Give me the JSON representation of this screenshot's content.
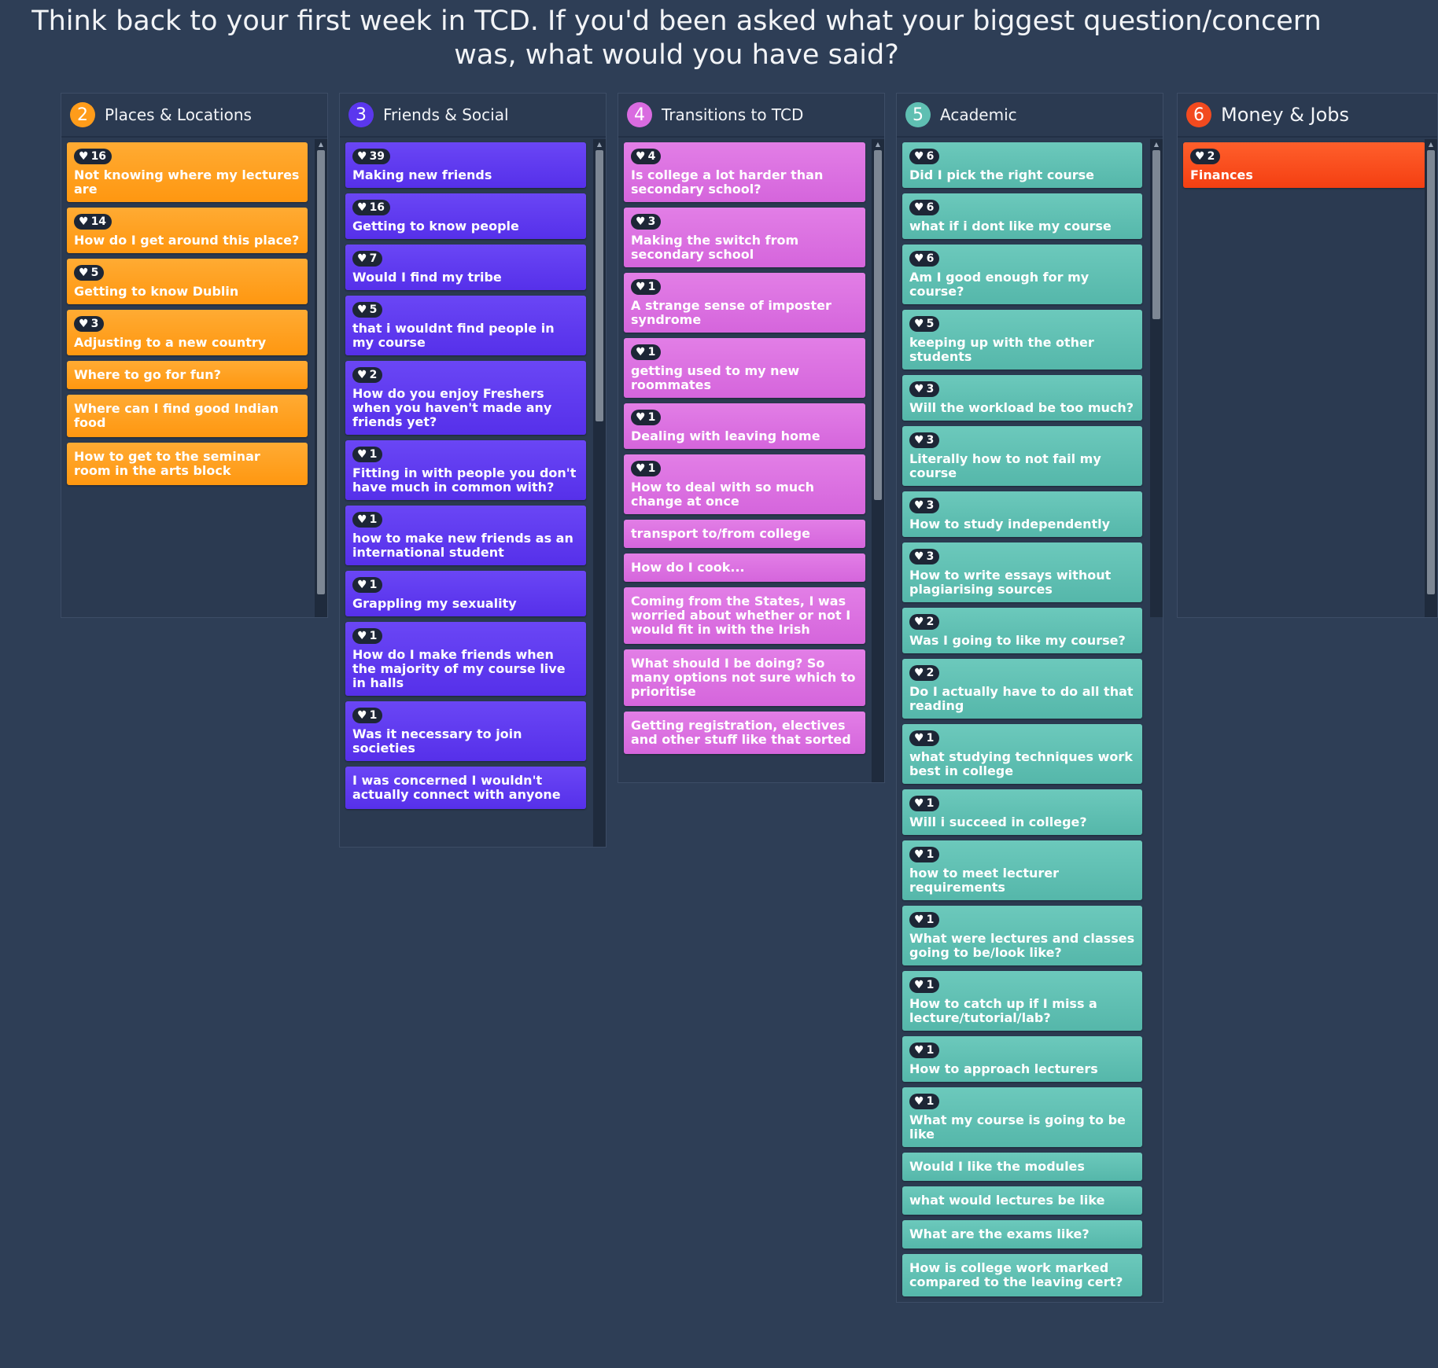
{
  "prompt_title": "Think back to your first week in TCD.  If you'd been asked what your biggest question/concern was, what would you have said?",
  "colors": {
    "background": "#2e3e56",
    "orange": "#ff9f1f",
    "purple": "#5f3bf0",
    "pink": "#dc70e1",
    "teal": "#60c0b3",
    "red": "#f84b1c"
  },
  "columns": [
    {
      "number": "2",
      "title": "Places & Locations",
      "color": "orange",
      "cards": [
        {
          "likes": "16",
          "text": "Not knowing where my lectures are"
        },
        {
          "likes": "14",
          "text": "How do I get around this place?"
        },
        {
          "likes": "5",
          "text": "Getting to know Dublin"
        },
        {
          "likes": "3",
          "text": "Adjusting to a new country"
        },
        {
          "likes": "",
          "text": "Where to go for fun?"
        },
        {
          "likes": "",
          "text": "Where can I find good Indian food"
        },
        {
          "likes": "",
          "text": "How to get to the seminar room in the arts block"
        }
      ]
    },
    {
      "number": "3",
      "title": "Friends & Social",
      "color": "purple",
      "cards": [
        {
          "likes": "39",
          "text": "Making new friends"
        },
        {
          "likes": "16",
          "text": "Getting to know people"
        },
        {
          "likes": "7",
          "text": "Would I find my tribe"
        },
        {
          "likes": "5",
          "text": "that i wouldnt find people in my course"
        },
        {
          "likes": "2",
          "text": "How do you enjoy Freshers when you haven't made any friends yet?"
        },
        {
          "likes": "1",
          "text": "Fitting in with people you don't have much in common with?"
        },
        {
          "likes": "1",
          "text": "how to make new friends as an international student"
        },
        {
          "likes": "1",
          "text": "Grappling my sexuality"
        },
        {
          "likes": "1",
          "text": "How do I make friends when the majority of my course live in halls"
        },
        {
          "likes": "1",
          "text": "Was it necessary to join societies"
        },
        {
          "likes": "",
          "text": "I was concerned I wouldn't actually connect with anyone"
        }
      ]
    },
    {
      "number": "4",
      "title": "Transitions to TCD",
      "color": "pink",
      "cards": [
        {
          "likes": "4",
          "text": "Is college a lot harder than secondary school?"
        },
        {
          "likes": "3",
          "text": "Making the switch from secondary school"
        },
        {
          "likes": "1",
          "text": "A strange sense of imposter syndrome"
        },
        {
          "likes": "1",
          "text": "getting used to my new roommates"
        },
        {
          "likes": "1",
          "text": "Dealing with leaving home"
        },
        {
          "likes": "1",
          "text": "How to deal with so much change at once"
        },
        {
          "likes": "",
          "text": "transport to/from college"
        },
        {
          "likes": "",
          "text": "How do I cook..."
        },
        {
          "likes": "",
          "text": "Coming from the States, I was worried about whether or not I would fit in with the Irish"
        },
        {
          "likes": "",
          "text": "What should I be doing? So many options not sure which to prioritise"
        },
        {
          "likes": "",
          "text": "Getting registration, electives and other stuff like that sorted"
        }
      ]
    },
    {
      "number": "5",
      "title": "Academic",
      "color": "teal",
      "cards": [
        {
          "likes": "6",
          "text": "Did I pick the right course"
        },
        {
          "likes": "6",
          "text": "what if i dont like my course"
        },
        {
          "likes": "6",
          "text": "Am I good enough for my course?"
        },
        {
          "likes": "5",
          "text": "keeping up with the other students"
        },
        {
          "likes": "3",
          "text": "Will the workload be too much?"
        },
        {
          "likes": "3",
          "text": "Literally how to not fail my course"
        },
        {
          "likes": "3",
          "text": "How to study independently"
        },
        {
          "likes": "3",
          "text": "How to write essays without plagiarising sources"
        },
        {
          "likes": "2",
          "text": "Was I going to like my course?"
        },
        {
          "likes": "2",
          "text": "Do I actually have to do all that reading"
        },
        {
          "likes": "1",
          "text": "what studying techniques work best in college"
        },
        {
          "likes": "1",
          "text": "Will i succeed in college?"
        },
        {
          "likes": "1",
          "text": "how to meet lecturer requirements"
        },
        {
          "likes": "1",
          "text": "What were lectures and classes going to be/look like?"
        },
        {
          "likes": "1",
          "text": "How to catch up if I miss a lecture/tutorial/lab?"
        },
        {
          "likes": "1",
          "text": "How to approach lecturers"
        },
        {
          "likes": "1",
          "text": "What my course is going to be like"
        },
        {
          "likes": "",
          "text": "Would I like the modules"
        },
        {
          "likes": "",
          "text": "what would lectures be like"
        },
        {
          "likes": "",
          "text": "What are the exams like?"
        },
        {
          "likes": "",
          "text": "How is college work marked compared to the leaving cert?"
        }
      ]
    },
    {
      "number": "6",
      "title": "Money & Jobs",
      "color": "red",
      "cards": [
        {
          "likes": "2",
          "text": "Finances"
        }
      ]
    }
  ]
}
